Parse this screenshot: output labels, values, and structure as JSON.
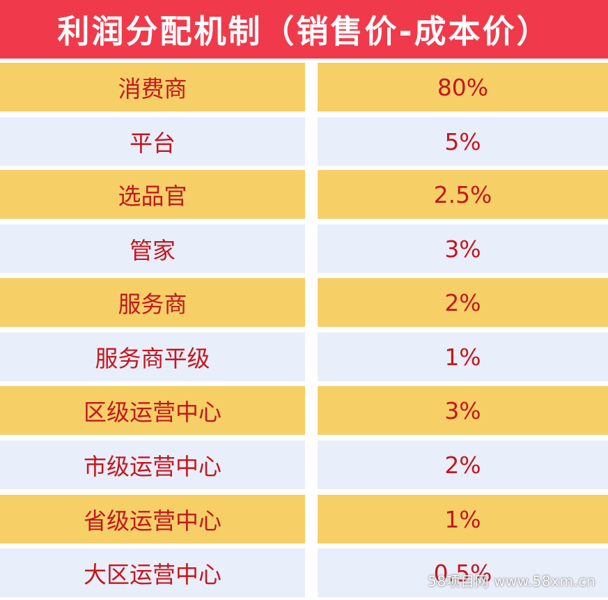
{
  "title": "利润分配机制（销售价-成本价）",
  "colors": {
    "header": "#f03a4b",
    "gold_row": "#f6d067",
    "blue_row": "#e9eefb",
    "text": "#c6161c"
  },
  "rows": [
    {
      "role": "消费商",
      "share": "80%"
    },
    {
      "role": "平台",
      "share": "5%"
    },
    {
      "role": "选品官",
      "share": "2.5%"
    },
    {
      "role": "管家",
      "share": "3%"
    },
    {
      "role": "服务商",
      "share": "2%"
    },
    {
      "role": "服务商平级",
      "share": "1%"
    },
    {
      "role": "区级运营中心",
      "share": "3%"
    },
    {
      "role": "市级运营中心",
      "share": "2%"
    },
    {
      "role": "省级运营中心",
      "share": "1%"
    },
    {
      "role": "大区运营中心",
      "share": "0.5%"
    }
  ],
  "watermark": "58项目网 www.58xm.cn"
}
